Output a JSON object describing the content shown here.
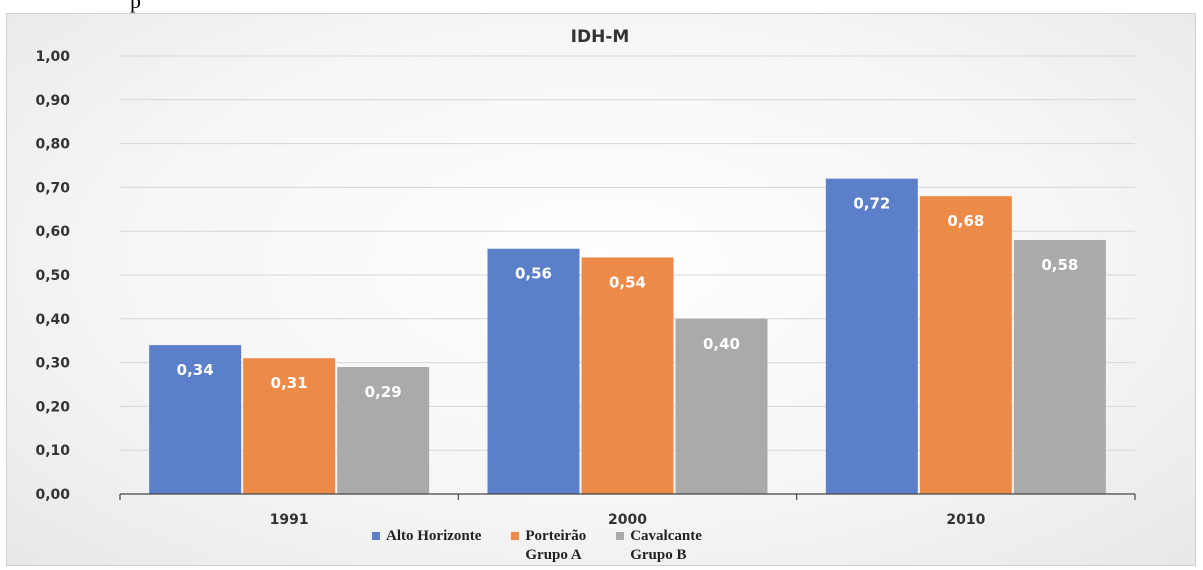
{
  "page_fragment": "p",
  "chart_data": {
    "type": "bar",
    "title": "IDH-M",
    "categories": [
      "1991",
      "2000",
      "2010"
    ],
    "series": [
      {
        "name": "Alto Horizonte",
        "values": [
          0.34,
          0.56,
          0.72
        ],
        "labels": [
          "0,34",
          "0,56",
          "0,72"
        ],
        "color": "#5b80c9"
      },
      {
        "name": "Porteirão\nGrupo A",
        "values": [
          0.31,
          0.54,
          0.68
        ],
        "labels": [
          "0,31",
          "0,54",
          "0,68"
        ],
        "color": "#ec8a47"
      },
      {
        "name": "Cavalcante\nGrupo B",
        "values": [
          0.29,
          0.4,
          0.58
        ],
        "labels": [
          "0,29",
          "0,40",
          "0,58"
        ],
        "color": "#aaaaaa"
      }
    ],
    "ylim": [
      0,
      1.0
    ],
    "yticks": [
      "0,00",
      "0,10",
      "0,20",
      "0,30",
      "0,40",
      "0,50",
      "0,60",
      "0,70",
      "0,80",
      "0,90",
      "1,00"
    ],
    "grid": true,
    "legend_position": "bottom"
  }
}
